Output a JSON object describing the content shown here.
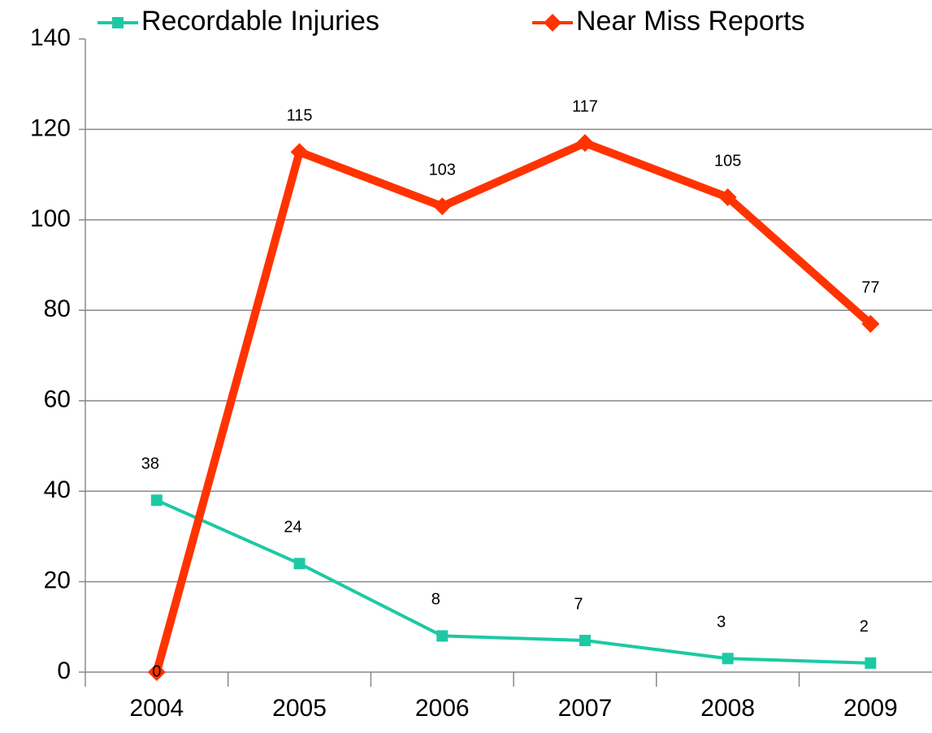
{
  "chart_data": {
    "type": "line",
    "categories": [
      "2004",
      "2005",
      "2006",
      "2007",
      "2008",
      "2009"
    ],
    "series": [
      {
        "name": "Recordable Injuries",
        "color": "#1dc9a4",
        "marker": "square",
        "values": [
          38,
          24,
          8,
          7,
          3,
          2
        ]
      },
      {
        "name": "Near Miss Reports",
        "color": "#ff3300",
        "marker": "diamond",
        "values": [
          0,
          115,
          103,
          117,
          105,
          77
        ]
      }
    ],
    "ylim": [
      0,
      140
    ],
    "yticks": [
      0,
      20,
      40,
      60,
      80,
      100,
      120,
      140
    ],
    "grid": true,
    "legend": "top"
  }
}
